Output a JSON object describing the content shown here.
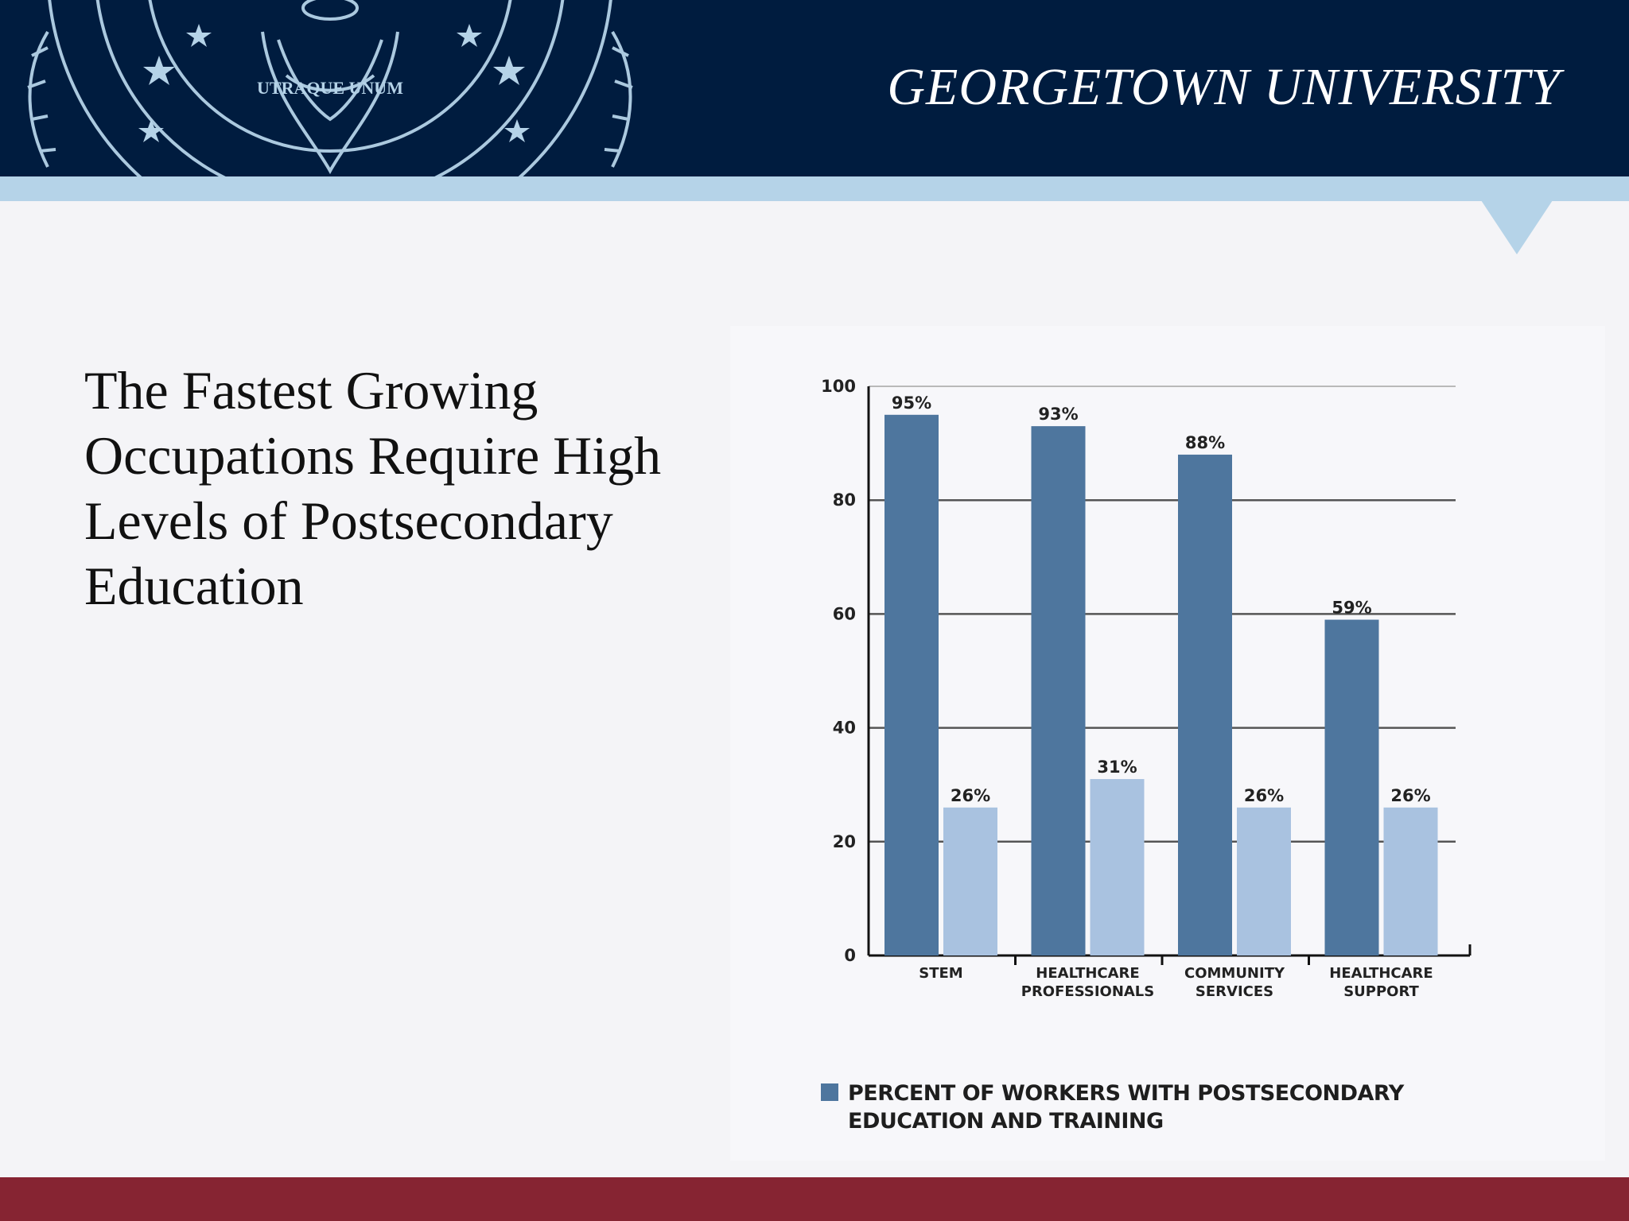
{
  "header": {
    "university_name": "GEORGETOWN UNIVERSITY",
    "seal_text": "UTRAQUE UNUM"
  },
  "slide": {
    "title": "The Fastest Growing Occupations Require High Levels of Postsecondary Education"
  },
  "colors": {
    "header_navy": "#001c3f",
    "accent_light_blue": "#b5d3e8",
    "footer_maroon": "#862432",
    "series_dark": "#4e769e",
    "series_light": "#a9c2e0"
  },
  "chart_data": {
    "type": "bar",
    "categories": [
      [
        "STEM"
      ],
      [
        "HEALTHCARE",
        "PROFESSIONALS"
      ],
      [
        "COMMUNITY",
        "SERVICES"
      ],
      [
        "HEALTHCARE",
        "SUPPORT"
      ]
    ],
    "series": [
      {
        "name": "PERCENT OF WORKERS WITH POSTSECONDARY EDUCATION AND TRAINING",
        "values": [
          95,
          93,
          88,
          59
        ],
        "labels": [
          "95%",
          "93%",
          "88%",
          "59%"
        ],
        "color": "#4e769e"
      },
      {
        "values": [
          26,
          31,
          26,
          26
        ],
        "labels": [
          "26%",
          "31%",
          "26%",
          "26%"
        ],
        "color": "#a9c2e0"
      }
    ],
    "ylim": [
      0,
      100
    ],
    "yticks": [
      0,
      20,
      40,
      60,
      80,
      100
    ],
    "grid": true,
    "legend_position": "bottom-left",
    "legend_label": "PERCENT OF WORKERS WITH POSTSECONDARY EDUCATION AND TRAINING"
  }
}
